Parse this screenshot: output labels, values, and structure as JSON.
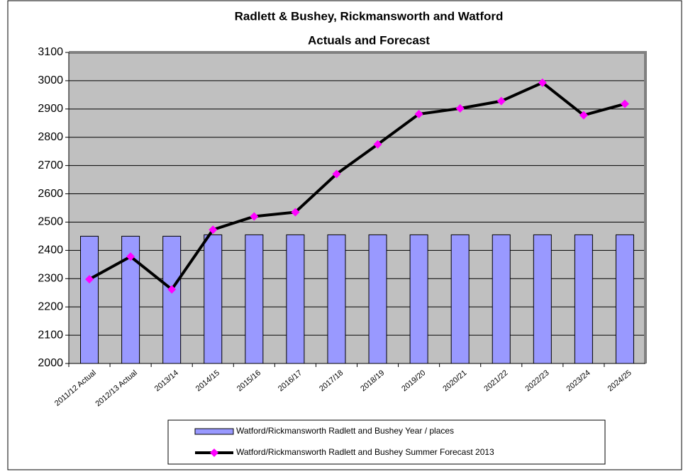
{
  "chart_data": {
    "type": "bar_line",
    "title": [
      "Radlett & Bushey, Rickmansworth and Watford",
      "Actuals and Forecast"
    ],
    "categories": [
      "2011/12 Actual",
      "2012/13 Actual",
      "2013/14",
      "2014/15",
      "2015/16",
      "2016/17",
      "2017/18",
      "2018/19",
      "2019/20",
      "2020/21",
      "2021/22",
      "2022/23",
      "2023/24",
      "2024/25"
    ],
    "series": [
      {
        "name": "Watford/Rickmansworth Radlett and Bushey Year / places",
        "color": "#9999ff",
        "kind": "bar",
        "values": [
          2450,
          2450,
          2450,
          2455,
          2455,
          2455,
          2455,
          2455,
          2455,
          2455,
          2455,
          2455,
          2455,
          2455
        ]
      },
      {
        "name": "Watford/Rickmansworth Radlett and Bushey Summer Forecast 2013",
        "color": "#000000",
        "marker_color": "#ff00ff",
        "kind": "line",
        "values": [
          2298,
          2378,
          2262,
          2473,
          2520,
          2535,
          2670,
          2775,
          2882,
          2902,
          2928,
          2993,
          2878,
          2918
        ]
      }
    ],
    "ylim": [
      2000,
      3100
    ],
    "yticks": [
      2000,
      2100,
      2200,
      2300,
      2400,
      2500,
      2600,
      2700,
      2800,
      2900,
      3000,
      3100
    ],
    "grid": true
  }
}
